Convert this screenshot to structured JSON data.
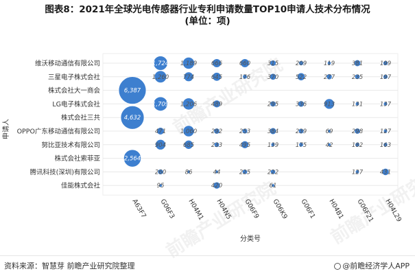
{
  "header": {
    "title_line1": "图表8：2021年全球光电传感器行业专利申请数量TOP10申请人技术分布情况",
    "title_line2": "(单位：项)"
  },
  "footer": {
    "source": "资料来源：智慧芽 前瞻产业研究院整理",
    "brand": "@前瞻经济学人APP"
  },
  "watermark": "前瞻产业研究院",
  "colors": {
    "bubble": "#3d7fcf",
    "bubble_stroke": "#ffffff",
    "grid": "#e8e8e8",
    "label_text": "#ffffff",
    "value_text": "#555555"
  },
  "chart_data": {
    "type": "scatter",
    "subtype": "bubble-matrix",
    "xlabel": "分类号",
    "ylabel": "申请人",
    "x_categories": [
      "A63F7",
      "G06F3",
      "H04M1",
      "H04N5",
      "G06F9",
      "G06K9",
      "G06F1",
      "H04B1",
      "G06F21",
      "H04L29"
    ],
    "y_categories": [
      "维沃移动通信有限公司",
      "三星电子株式会社",
      "株式会社大一商会",
      "LG电子株式会社",
      "株式会社三共",
      "OPPO广东移动通信有限公司",
      "努比亚技术有限公司",
      "株式会社索菲亚",
      "腾讯科技(深圳)有限公司",
      "佳能株式会社"
    ],
    "values": [
      [
        null,
        1724,
        1189,
        666,
        660,
        315,
        209,
        119,
        381,
        199
      ],
      [
        null,
        1260,
        774,
        645,
        176,
        370,
        522,
        277,
        235,
        197
      ],
      [
        6387,
        null,
        null,
        null,
        null,
        null,
        null,
        null,
        null,
        null
      ],
      [
        null,
        1709,
        1206,
        489,
        null,
        295,
        336,
        913,
        131,
        137
      ],
      [
        4632,
        null,
        null,
        null,
        null,
        null,
        null,
        null,
        null,
        null
      ],
      [
        null,
        471,
        1060,
        292,
        253,
        384,
        239,
        69,
        298,
        127
      ],
      [
        null,
        904,
        685,
        233,
        495,
        139,
        175,
        42,
        182,
        163
      ],
      [
        2564,
        null,
        null,
        null,
        null,
        null,
        null,
        null,
        null,
        null
      ],
      [
        null,
        260,
        86,
        44,
        225,
        222,
        null,
        null,
        127,
        431
      ],
      [
        null,
        95,
        null,
        420,
        null,
        61,
        null,
        null,
        null,
        null
      ]
    ],
    "value_labels": [
      [
        null,
        "1,724",
        "1,189",
        "666",
        "660",
        "315",
        "209",
        "119",
        "381",
        "199"
      ],
      [
        null,
        "1,260",
        "774",
        "645",
        "176",
        "370",
        "522",
        "277",
        "235",
        "197"
      ],
      [
        "6,387",
        null,
        null,
        null,
        null,
        null,
        null,
        null,
        null,
        null
      ],
      [
        null,
        "1,709",
        "1,206",
        "489",
        null,
        "295",
        "336",
        "913",
        "131",
        "137"
      ],
      [
        "4,632",
        null,
        null,
        null,
        null,
        null,
        null,
        null,
        null,
        null
      ],
      [
        null,
        "471",
        "1,060",
        "292",
        "253",
        "384",
        "239",
        "69",
        "298",
        "127"
      ],
      [
        null,
        "904",
        "685",
        "233",
        "495",
        "139",
        "175",
        "42",
        "182",
        "163"
      ],
      [
        "2,564",
        null,
        null,
        null,
        null,
        null,
        null,
        null,
        null,
        null
      ],
      [
        null,
        "260",
        "86",
        "44",
        "225",
        "222",
        null,
        null,
        "127",
        "431"
      ],
      [
        null,
        "95",
        null,
        "420",
        null,
        "61",
        null,
        null,
        null,
        null
      ]
    ],
    "grid": true,
    "legend": "none"
  }
}
